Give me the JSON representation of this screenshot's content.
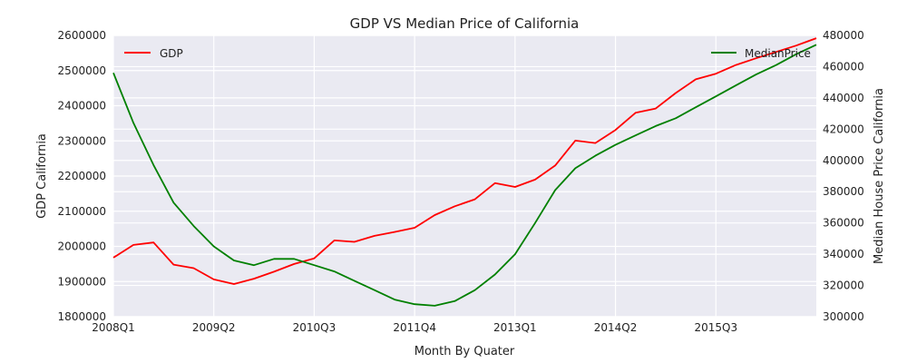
{
  "chart_data": {
    "type": "line",
    "title": "GDP VS Median Price of California",
    "xlabel": "Month By Quater",
    "ylabel_left": "GDP California",
    "ylabel_right": "Median House Price California",
    "x_tick_labels": [
      "2008Q1",
      "2009Q2",
      "2010Q3",
      "2011Q4",
      "2013Q1",
      "2014Q2",
      "2015Q3"
    ],
    "x_tick_positions": [
      0,
      5,
      10,
      15,
      20,
      25,
      30
    ],
    "xlim": [
      0,
      35
    ],
    "ylim_left": [
      1800000,
      2600000
    ],
    "ylim_right": [
      300000,
      480000
    ],
    "y_ticks_left": [
      1800000,
      1900000,
      2000000,
      2100000,
      2200000,
      2300000,
      2400000,
      2500000,
      2600000
    ],
    "y_ticks_right": [
      300000,
      320000,
      340000,
      360000,
      380000,
      400000,
      420000,
      440000,
      460000,
      480000
    ],
    "grid": true,
    "legend_left": "top-left",
    "legend_right": "top-right",
    "series": [
      {
        "name": "GDP",
        "axis": "left",
        "color": "#ff0000",
        "x": [
          0,
          1,
          2,
          3,
          4,
          5,
          6,
          7,
          8,
          9,
          10,
          11,
          12,
          13,
          14,
          15,
          16,
          17,
          18,
          19,
          20,
          21,
          22,
          23,
          24,
          25,
          26,
          27,
          28,
          29,
          30,
          31,
          32,
          33,
          34,
          35
        ],
        "values": [
          1968000,
          2004000,
          2011000,
          1948000,
          1938000,
          1906000,
          1893000,
          1908000,
          1928000,
          1950000,
          1966000,
          2017000,
          2013000,
          2030000,
          2041000,
          2053000,
          2089000,
          2114000,
          2134000,
          2180000,
          2169000,
          2190000,
          2230000,
          2301000,
          2294000,
          2331000,
          2380000,
          2392000,
          2436000,
          2475000,
          2491000,
          2516000,
          2535000,
          2553000,
          2571000,
          2592000
        ]
      },
      {
        "name": "MedianPrice",
        "axis": "right",
        "color": "#008000",
        "x": [
          0,
          1,
          2,
          3,
          4,
          5,
          6,
          7,
          8,
          9,
          10,
          11,
          12,
          13,
          14,
          15,
          16,
          17,
          18,
          19,
          20,
          21,
          22,
          23,
          24,
          25,
          26,
          27,
          28,
          29,
          30,
          31,
          32,
          33,
          34,
          35
        ],
        "values": [
          456000,
          424000,
          397000,
          373000,
          358000,
          345000,
          336000,
          333000,
          337000,
          337000,
          333000,
          329000,
          323000,
          317000,
          311000,
          308000,
          307000,
          310000,
          317000,
          327000,
          340000,
          360000,
          381000,
          395000,
          403000,
          410000,
          416000,
          422000,
          427000,
          434000,
          441000,
          448000,
          455000,
          461000,
          468000,
          474000
        ]
      }
    ]
  }
}
